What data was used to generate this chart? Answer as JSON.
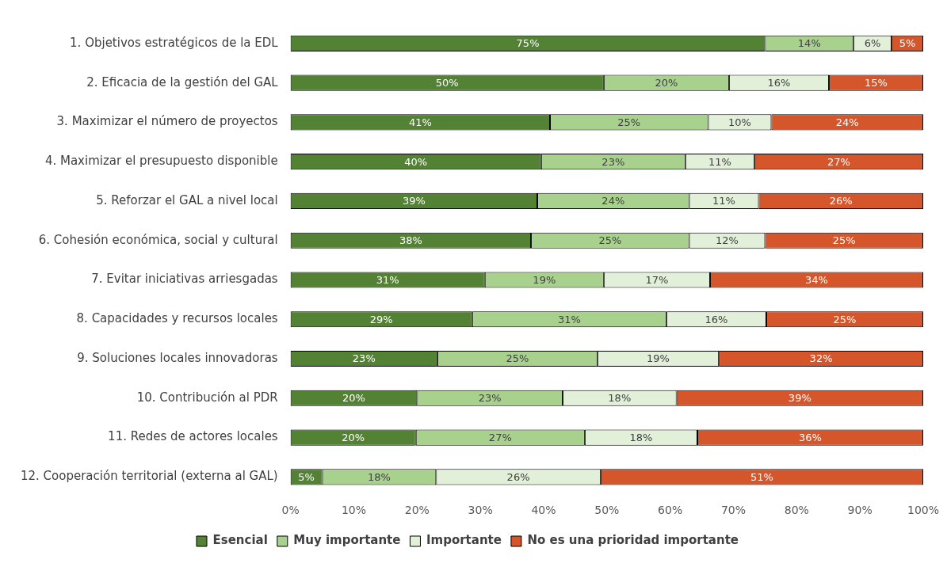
{
  "chart_data": {
    "type": "bar",
    "orientation": "horizontal",
    "stacked": true,
    "legend": "bottom",
    "grid": false,
    "categories": [
      "1. Objetivos estratégicos de la EDL",
      "2. Eficacia de la gestión del GAL",
      "3. Maximizar el número de proyectos",
      "4. Maximizar el presupuesto disponible",
      "5. Reforzar el GAL a nivel local",
      "6. Cohesión económica, social y cultural",
      "7. Evitar iniciativas arriesgadas",
      "8. Capacidades y recursos locales",
      "9. Soluciones locales innovadoras",
      "10. Contribución al PDR",
      "11. Redes de actores locales",
      "12. Cooperación territorial (externa al GAL)"
    ],
    "xlim": [
      0,
      100
    ],
    "xticks": [
      {
        "value": 0,
        "label": "0%"
      },
      {
        "value": 10,
        "label": "10%"
      },
      {
        "value": 20,
        "label": "20%"
      },
      {
        "value": 30,
        "label": "30%"
      },
      {
        "value": 40,
        "label": "40%"
      },
      {
        "value": 50,
        "label": "50%"
      },
      {
        "value": 60,
        "label": "60%"
      },
      {
        "value": 70,
        "label": "70%"
      },
      {
        "value": 80,
        "label": "80%"
      },
      {
        "value": 90,
        "label": "90%"
      },
      {
        "value": 100,
        "label": "100%"
      }
    ],
    "series": [
      {
        "name": "Esencial",
        "color": "#548235",
        "values": [
          75,
          49.5,
          41,
          39.6,
          39,
          38,
          30.7,
          28.7,
          23.2,
          20,
          19.8,
          5
        ],
        "value_labels": [
          "75%",
          "50%",
          "41%",
          "40%",
          "39%",
          "38%",
          "31%",
          "29%",
          "23%",
          "20%",
          "20%",
          "5%"
        ]
      },
      {
        "name": "Muy importante",
        "color": "#a9d18e",
        "values": [
          14,
          19.8,
          25,
          22.8,
          24,
          25,
          18.8,
          30.7,
          25.3,
          23,
          26.7,
          18
        ],
        "value_labels": [
          "14%",
          "20%",
          "25%",
          "23%",
          "24%",
          "25%",
          "19%",
          "31%",
          "25%",
          "23%",
          "27%",
          "18%"
        ]
      },
      {
        "name": "Importante",
        "color": "#e2f0d9",
        "values": [
          6,
          15.8,
          10,
          10.9,
          11,
          12,
          16.8,
          15.8,
          19.2,
          18,
          17.8,
          26
        ],
        "value_labels": [
          "6%",
          "16%",
          "10%",
          "11%",
          "11%",
          "12%",
          "17%",
          "16%",
          "19%",
          "18%",
          "18%",
          "26%"
        ]
      },
      {
        "name": "No es una prioridad importante",
        "color": "#d5562b",
        "values": [
          5,
          14.9,
          24,
          26.7,
          26,
          25,
          33.7,
          24.8,
          32.3,
          39,
          35.7,
          51
        ],
        "value_labels": [
          "5%",
          "15%",
          "24%",
          "27%",
          "26%",
          "25%",
          "34%",
          "25%",
          "32%",
          "39%",
          "36%",
          "51%"
        ]
      }
    ]
  }
}
